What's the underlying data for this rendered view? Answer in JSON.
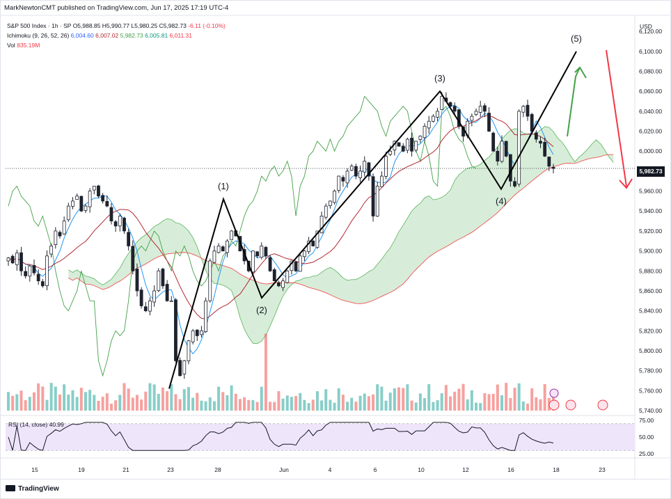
{
  "header": {
    "publisher": "MarkNewtonCMT published on TradingView.com, Jun 17, 2025 17:19 UTC-4"
  },
  "legend": {
    "symbol": "S&P 500 Index · 1h · SP",
    "open": "O5,988.85",
    "high": "H5,990.77",
    "low": "L5,980.25",
    "close": "C5,982.73",
    "change": "-6.11 (-0.10%)",
    "ichimoku_label": "Ichimoku (9, 26, 52, 26)",
    "ichimoku_values": [
      "6,004.60",
      "6,007.02",
      "5,982.73",
      "6,005.81",
      "6,011.31"
    ],
    "vol_label": "Vol",
    "vol_value": "835.19M"
  },
  "price_axis": {
    "currency": "USD",
    "ticks": [
      "6,120.00",
      "6,100.00",
      "6,080.00",
      "6,060.00",
      "6,040.00",
      "6,020.00",
      "6,000.00",
      "5,980.00",
      "5,960.00",
      "5,940.00",
      "5,920.00",
      "5,900.00",
      "5,880.00",
      "5,860.00",
      "5,840.00",
      "5,820.00",
      "5,800.00",
      "5,780.00",
      "5,760.00",
      "5,740.00"
    ],
    "last_price": "5,982.73"
  },
  "rsi": {
    "label": "RSI (14, close)",
    "value": "40.99",
    "ticks": [
      "75.00",
      "50.00",
      "25.00"
    ]
  },
  "time_axis": {
    "labels": [
      "15",
      "19",
      "21",
      "23",
      "28",
      "Jun",
      "4",
      "6",
      "10",
      "12",
      "16",
      "18",
      "23"
    ]
  },
  "wave_labels": [
    "(1)",
    "(2)",
    "(3)",
    "(4)",
    "(5)"
  ],
  "brand": "TradingView",
  "colors": {
    "up": "#26a69a",
    "down": "#ef5350",
    "tenkan": "#2196f3",
    "kijun": "#b22833",
    "chikou": "#43a047",
    "cloud_bull": "#c8e6c9",
    "cloud_bear": "#fbd2d2",
    "wave_line": "#000000",
    "arrow_up": "#43a047",
    "arrow_down": "#f23645",
    "rsi_band": "#efe5fb"
  },
  "chart_data": {
    "type": "candlestick",
    "symbol": "S&P 500 Index",
    "interval": "1h",
    "ylim": [
      5740,
      6125
    ],
    "price_ticks": [
      6120,
      6100,
      6080,
      6060,
      6040,
      6020,
      6000,
      5980,
      5960,
      5940,
      5920,
      5900,
      5880,
      5860,
      5840,
      5820,
      5800,
      5780,
      5760,
      5740
    ],
    "last_price": 5982.73,
    "candles_close": [
      5893,
      5888,
      5898,
      5880,
      5875,
      5885,
      5878,
      5870,
      5865,
      5895,
      5905,
      5920,
      5915,
      5930,
      5945,
      5950,
      5955,
      5940,
      5945,
      5960,
      5965,
      5955,
      5950,
      5945,
      5930,
      5925,
      5935,
      5920,
      5905,
      5880,
      5860,
      5845,
      5840,
      5850,
      5860,
      5880,
      5865,
      5850,
      5850,
      5790,
      5775,
      5790,
      5810,
      5820,
      5815,
      5820,
      5850,
      5890,
      5900,
      5905,
      5900,
      5910,
      5920,
      5915,
      5900,
      5890,
      5880,
      5900,
      5895,
      5905,
      5895,
      5880,
      5870,
      5865,
      5870,
      5880,
      5890,
      5880,
      5895,
      5900,
      5910,
      5905,
      5920,
      5935,
      5945,
      5950,
      5960,
      5975,
      5970,
      5980,
      5985,
      5975,
      5980,
      5990,
      5975,
      5935,
      5965,
      5975,
      5995,
      6000,
      6010,
      6005,
      6000,
      6012,
      6000,
      6010,
      6015,
      6025,
      6030,
      6035,
      6040,
      6055,
      6050,
      6045,
      6040,
      6025,
      6015,
      6030,
      6035,
      6040,
      6045,
      6040,
      6020,
      6000,
      5990,
      6010,
      5995,
      5970,
      5965,
      6040,
      6045,
      6035,
      6020,
      6012,
      6008,
      5995,
      5985,
      5982.73
    ],
    "rsi": {
      "ylim": [
        25,
        75
      ],
      "bands": [
        30,
        70
      ],
      "last": 40.99
    },
    "wave_points": [
      {
        "label": "(1)",
        "price": 5952
      },
      {
        "label": "(2)",
        "price": 5853
      },
      {
        "label": "(3)",
        "price": 6060
      },
      {
        "label": "(4)",
        "price": 5962
      },
      {
        "label": "(5)",
        "price": 6100
      }
    ]
  }
}
